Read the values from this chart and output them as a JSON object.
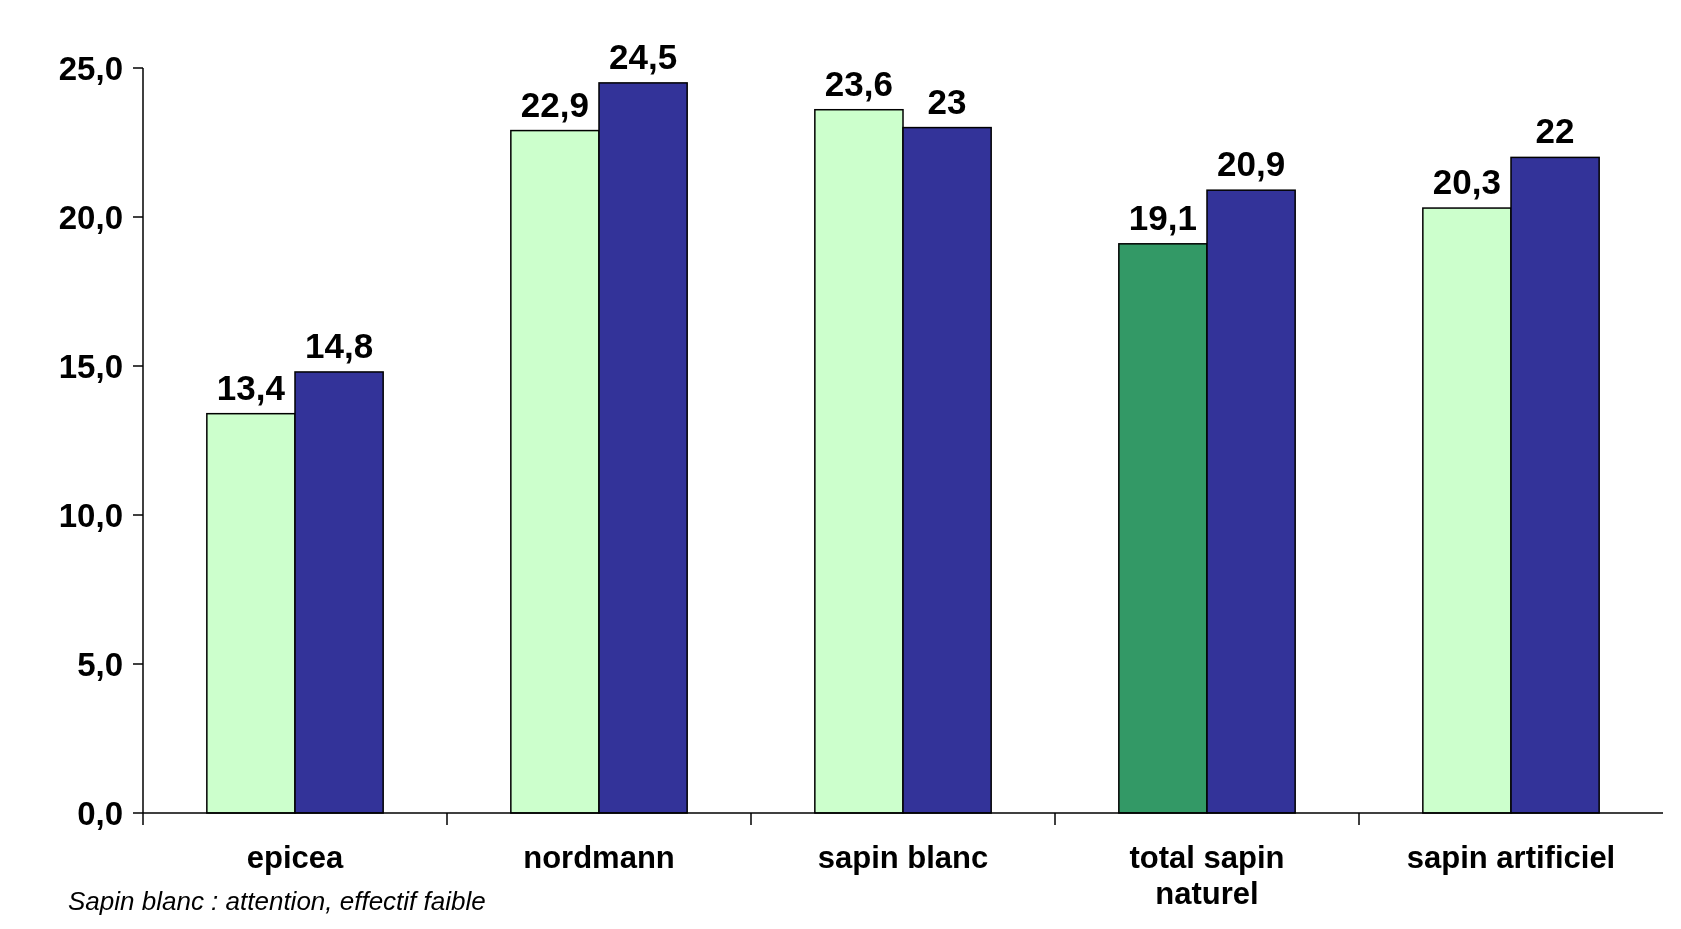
{
  "chart_data": {
    "type": "bar",
    "categories": [
      "epicea",
      "nordmann",
      "sapin blanc",
      "total sapin naturel",
      "sapin artificiel"
    ],
    "series": [
      {
        "colors": [
          "#ccffcc",
          "#ccffcc",
          "#ccffcc",
          "#339966",
          "#ccffcc"
        ],
        "values": [
          13.4,
          22.9,
          23.6,
          19.1,
          20.3
        ],
        "value_labels": [
          "13,4",
          "22,9",
          "23,6",
          "19,1",
          "20,3"
        ]
      },
      {
        "color": "#333399",
        "values": [
          14.8,
          24.5,
          23,
          20.9,
          22
        ],
        "value_labels": [
          "14,8",
          "24,5",
          "23",
          "20,9",
          "22"
        ]
      }
    ],
    "ylim": [
      0,
      25
    ],
    "yticks": [
      {
        "value": 0,
        "label": "0,0"
      },
      {
        "value": 5,
        "label": "5,0"
      },
      {
        "value": 10,
        "label": "10,0"
      },
      {
        "value": 15,
        "label": "15,0"
      },
      {
        "value": 20,
        "label": "20,0"
      },
      {
        "value": 25,
        "label": "25,0"
      }
    ],
    "grid": false,
    "annotations": [
      "Sapin blanc : attention, effectif faible"
    ]
  }
}
